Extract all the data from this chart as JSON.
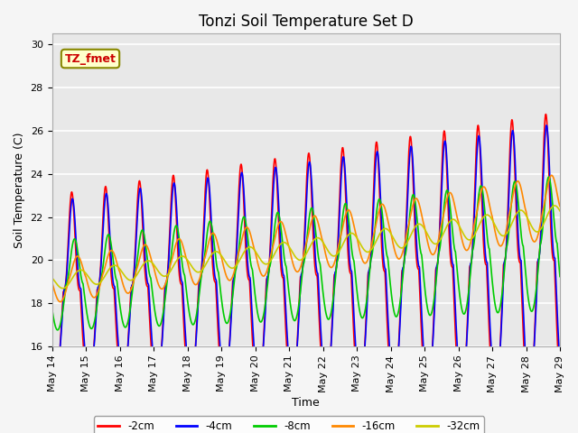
{
  "title": "Tonzi Soil Temperature Set D",
  "xlabel": "Time",
  "ylabel": "Soil Temperature (C)",
  "ylim": [
    16,
    30.5
  ],
  "xlim": [
    0,
    360
  ],
  "label_box_text": "TZ_fmet",
  "series": [
    {
      "label": "-2cm",
      "color": "#ff0000",
      "linewidth": 1.2
    },
    {
      "label": "-4cm",
      "color": "#0000ff",
      "linewidth": 1.2
    },
    {
      "label": "-8cm",
      "color": "#00cc00",
      "linewidth": 1.2
    },
    {
      "label": "-16cm",
      "color": "#ff8800",
      "linewidth": 1.2
    },
    {
      "label": "-32cm",
      "color": "#cccc00",
      "linewidth": 1.2
    }
  ],
  "xtick_labels": [
    "May 14",
    "May 15",
    "May 16",
    "May 17",
    "May 18",
    "May 19",
    "May 20",
    "May 21",
    "May 22",
    "May 23",
    "May 24",
    "May 25",
    "May 26",
    "May 27",
    "May 28",
    "May 29"
  ],
  "xtick_positions": [
    0,
    24,
    48,
    72,
    96,
    120,
    144,
    168,
    192,
    216,
    240,
    264,
    288,
    312,
    336,
    360
  ],
  "ytick_positions": [
    16,
    18,
    20,
    22,
    24,
    26,
    28,
    30
  ],
  "title_fontsize": 12,
  "axis_label_fontsize": 9,
  "tick_fontsize": 8
}
